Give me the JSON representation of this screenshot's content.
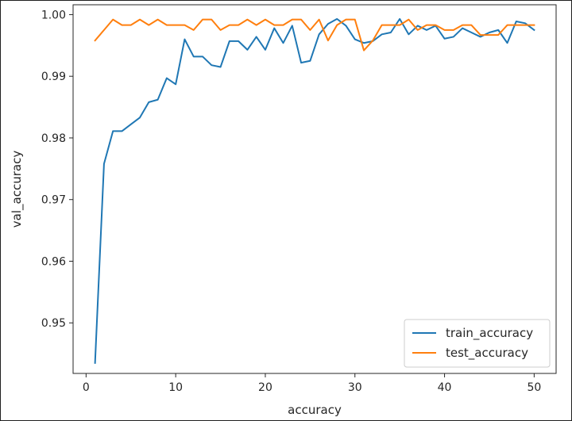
{
  "chart_data": {
    "type": "line",
    "title": "",
    "xlabel": "accuracy",
    "ylabel": "val_accuracy",
    "xlim": [
      -1.45,
      52.45
    ],
    "ylim": [
      0.9418,
      1.0016
    ],
    "xticks": [
      0,
      10,
      20,
      30,
      40,
      50
    ],
    "yticks": [
      0.95,
      0.96,
      0.97,
      0.98,
      0.99,
      1.0
    ],
    "xtick_labels": [
      "0",
      "10",
      "20",
      "30",
      "40",
      "50"
    ],
    "ytick_labels": [
      "0.95",
      "0.96",
      "0.97",
      "0.98",
      "0.99",
      "1.00"
    ],
    "grid": false,
    "legend_position": "bottom-right",
    "x": [
      1,
      2,
      3,
      4,
      5,
      6,
      7,
      8,
      9,
      10,
      11,
      12,
      13,
      14,
      15,
      16,
      17,
      18,
      19,
      20,
      21,
      22,
      23,
      24,
      25,
      26,
      27,
      28,
      29,
      30,
      31,
      32,
      33,
      34,
      35,
      36,
      37,
      38,
      39,
      40,
      41,
      42,
      43,
      44,
      45,
      46,
      47,
      48,
      49,
      50
    ],
    "series": [
      {
        "name": "train_accuracy",
        "color": "#1f77b4",
        "values": [
          0.9435,
          0.9758,
          0.9811,
          0.9811,
          0.9822,
          0.9833,
          0.9858,
          0.9862,
          0.9897,
          0.9887,
          0.996,
          0.9932,
          0.9932,
          0.9918,
          0.9915,
          0.9957,
          0.9957,
          0.9943,
          0.9964,
          0.9943,
          0.9978,
          0.9954,
          0.9982,
          0.9922,
          0.9925,
          0.9968,
          0.9985,
          0.9993,
          0.9982,
          0.996,
          0.9954,
          0.9957,
          0.9968,
          0.9971,
          0.9993,
          0.9968,
          0.9982,
          0.9975,
          0.9982,
          0.9961,
          0.9964,
          0.9978,
          0.9971,
          0.9964,
          0.9971,
          0.9975,
          0.9954,
          0.9989,
          0.9986,
          0.9975
        ]
      },
      {
        "name": "test_accuracy",
        "color": "#ff7f0e",
        "values": [
          0.9958,
          0.9975,
          0.9992,
          0.9983,
          0.9983,
          0.9992,
          0.9983,
          0.9992,
          0.9983,
          0.9983,
          0.9983,
          0.9975,
          0.9992,
          0.9992,
          0.9975,
          0.9983,
          0.9983,
          0.9992,
          0.9983,
          0.9992,
          0.9983,
          0.9983,
          0.9992,
          0.9992,
          0.9975,
          0.9992,
          0.9958,
          0.9983,
          0.9992,
          0.9992,
          0.9942,
          0.9958,
          0.9983,
          0.9983,
          0.9983,
          0.9992,
          0.9975,
          0.9983,
          0.9983,
          0.9975,
          0.9975,
          0.9983,
          0.9983,
          0.9967,
          0.9967,
          0.9967,
          0.9983,
          0.9983,
          0.9983,
          0.9983
        ]
      }
    ]
  }
}
